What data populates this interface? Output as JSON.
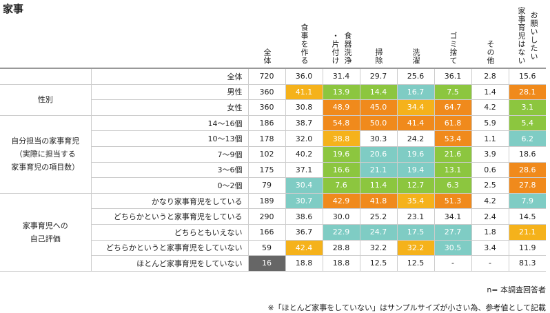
{
  "title": "家事",
  "columns": [
    [
      "全体"
    ],
    [
      "食事を作る"
    ],
    [
      "食器洗浄",
      "・片付け"
    ],
    [
      "掃除"
    ],
    [
      "洗濯"
    ],
    [
      "ゴミ捨て"
    ],
    [
      "その他"
    ],
    [
      "お願いしたい",
      "家事育児はない"
    ]
  ],
  "total": {
    "label": "全体",
    "cells": [
      "720",
      "36.0",
      "31.4",
      "29.7",
      "25.6",
      "36.1",
      "2.8",
      "15.6"
    ]
  },
  "groups": [
    {
      "label_lines": [
        "性別"
      ],
      "rows": [
        {
          "label": "男性",
          "cells": [
            "360",
            "41.1",
            "13.9",
            "14.4",
            "16.7",
            "7.5",
            "1.4",
            "28.1"
          ],
          "fills": [
            null,
            "#f5b21b",
            "#8cc63f",
            "#8cc63f",
            "#7fccc4",
            "#8cc63f",
            null,
            "#f08a1c"
          ]
        },
        {
          "label": "女性",
          "cells": [
            "360",
            "30.8",
            "48.9",
            "45.0",
            "34.4",
            "64.7",
            "4.2",
            "3.1"
          ],
          "fills": [
            null,
            null,
            "#f08a1c",
            "#f08a1c",
            "#f5b21b",
            "#f08a1c",
            null,
            "#8cc63f"
          ]
        }
      ]
    },
    {
      "label_lines": [
        "自分担当の家事育児",
        "（実際に担当する",
        "家事育児の項目数）"
      ],
      "rows": [
        {
          "label": "14〜16個",
          "cells": [
            "186",
            "38.7",
            "54.8",
            "50.0",
            "41.4",
            "61.8",
            "5.9",
            "5.4"
          ],
          "fills": [
            null,
            null,
            "#f08a1c",
            "#f08a1c",
            "#f08a1c",
            "#f08a1c",
            null,
            "#8cc63f"
          ]
        },
        {
          "label": "10〜13個",
          "cells": [
            "178",
            "32.0",
            "38.8",
            "30.3",
            "24.2",
            "53.4",
            "1.1",
            "6.2"
          ],
          "fills": [
            null,
            null,
            "#f5b21b",
            null,
            null,
            "#f08a1c",
            null,
            "#7fccc4"
          ]
        },
        {
          "label": "7〜9個",
          "cells": [
            "102",
            "40.2",
            "19.6",
            "20.6",
            "19.6",
            "21.6",
            "3.9",
            "18.6"
          ],
          "fills": [
            null,
            null,
            "#8cc63f",
            "#7fccc4",
            "#7fccc4",
            "#8cc63f",
            null,
            null
          ]
        },
        {
          "label": "3〜6個",
          "cells": [
            "175",
            "37.1",
            "16.6",
            "21.1",
            "19.4",
            "13.1",
            "0.6",
            "28.6"
          ],
          "fills": [
            null,
            null,
            "#8cc63f",
            "#7fccc4",
            "#7fccc4",
            "#8cc63f",
            null,
            "#f08a1c"
          ]
        },
        {
          "label": "0〜2個",
          "cells": [
            "79",
            "30.4",
            "7.6",
            "11.4",
            "12.7",
            "6.3",
            "2.5",
            "27.8"
          ],
          "fills": [
            null,
            "#7fccc4",
            "#8cc63f",
            "#8cc63f",
            "#8cc63f",
            "#8cc63f",
            null,
            "#f08a1c"
          ]
        }
      ]
    },
    {
      "label_lines": [
        "家事育児への",
        "自己評価"
      ],
      "rows": [
        {
          "label": "かなり家事育児をしている",
          "cells": [
            "189",
            "30.7",
            "42.9",
            "41.8",
            "35.4",
            "51.3",
            "4.2",
            "7.9"
          ],
          "fills": [
            null,
            "#7fccc4",
            "#f08a1c",
            "#f08a1c",
            "#f5b21b",
            "#f08a1c",
            null,
            "#7fccc4"
          ]
        },
        {
          "label": "どちらかというと家事育児をしている",
          "cells": [
            "290",
            "38.6",
            "30.0",
            "25.2",
            "23.1",
            "34.1",
            "2.4",
            "14.5"
          ],
          "fills": [
            null,
            null,
            null,
            null,
            null,
            null,
            null,
            null
          ]
        },
        {
          "label": "どちらともいえない",
          "cells": [
            "166",
            "36.7",
            "22.9",
            "24.7",
            "17.5",
            "27.7",
            "1.8",
            "21.1"
          ],
          "fills": [
            null,
            null,
            "#7fccc4",
            "#7fccc4",
            "#7fccc4",
            "#7fccc4",
            null,
            "#f5b21b"
          ]
        },
        {
          "label": "どちらかというと家事育児をしていない",
          "cells": [
            "59",
            "42.4",
            "28.8",
            "32.2",
            "32.2",
            "30.5",
            "3.4",
            "11.9"
          ],
          "fills": [
            null,
            "#f5b21b",
            null,
            null,
            "#f5b21b",
            "#7fccc4",
            null,
            null
          ]
        },
        {
          "label": "ほとんど家事育児をしていない",
          "cells": [
            "16",
            "18.8",
            "18.8",
            "12.5",
            "12.5",
            "-",
            "-",
            "81.3"
          ],
          "fills": [
            "#666666",
            null,
            null,
            null,
            null,
            null,
            null,
            null
          ]
        }
      ]
    }
  ],
  "notes": [
    "n= 本調査回答者",
    "※「ほとんど家事をしていない」はサンプルサイズが小さい為、参考値として記載"
  ]
}
